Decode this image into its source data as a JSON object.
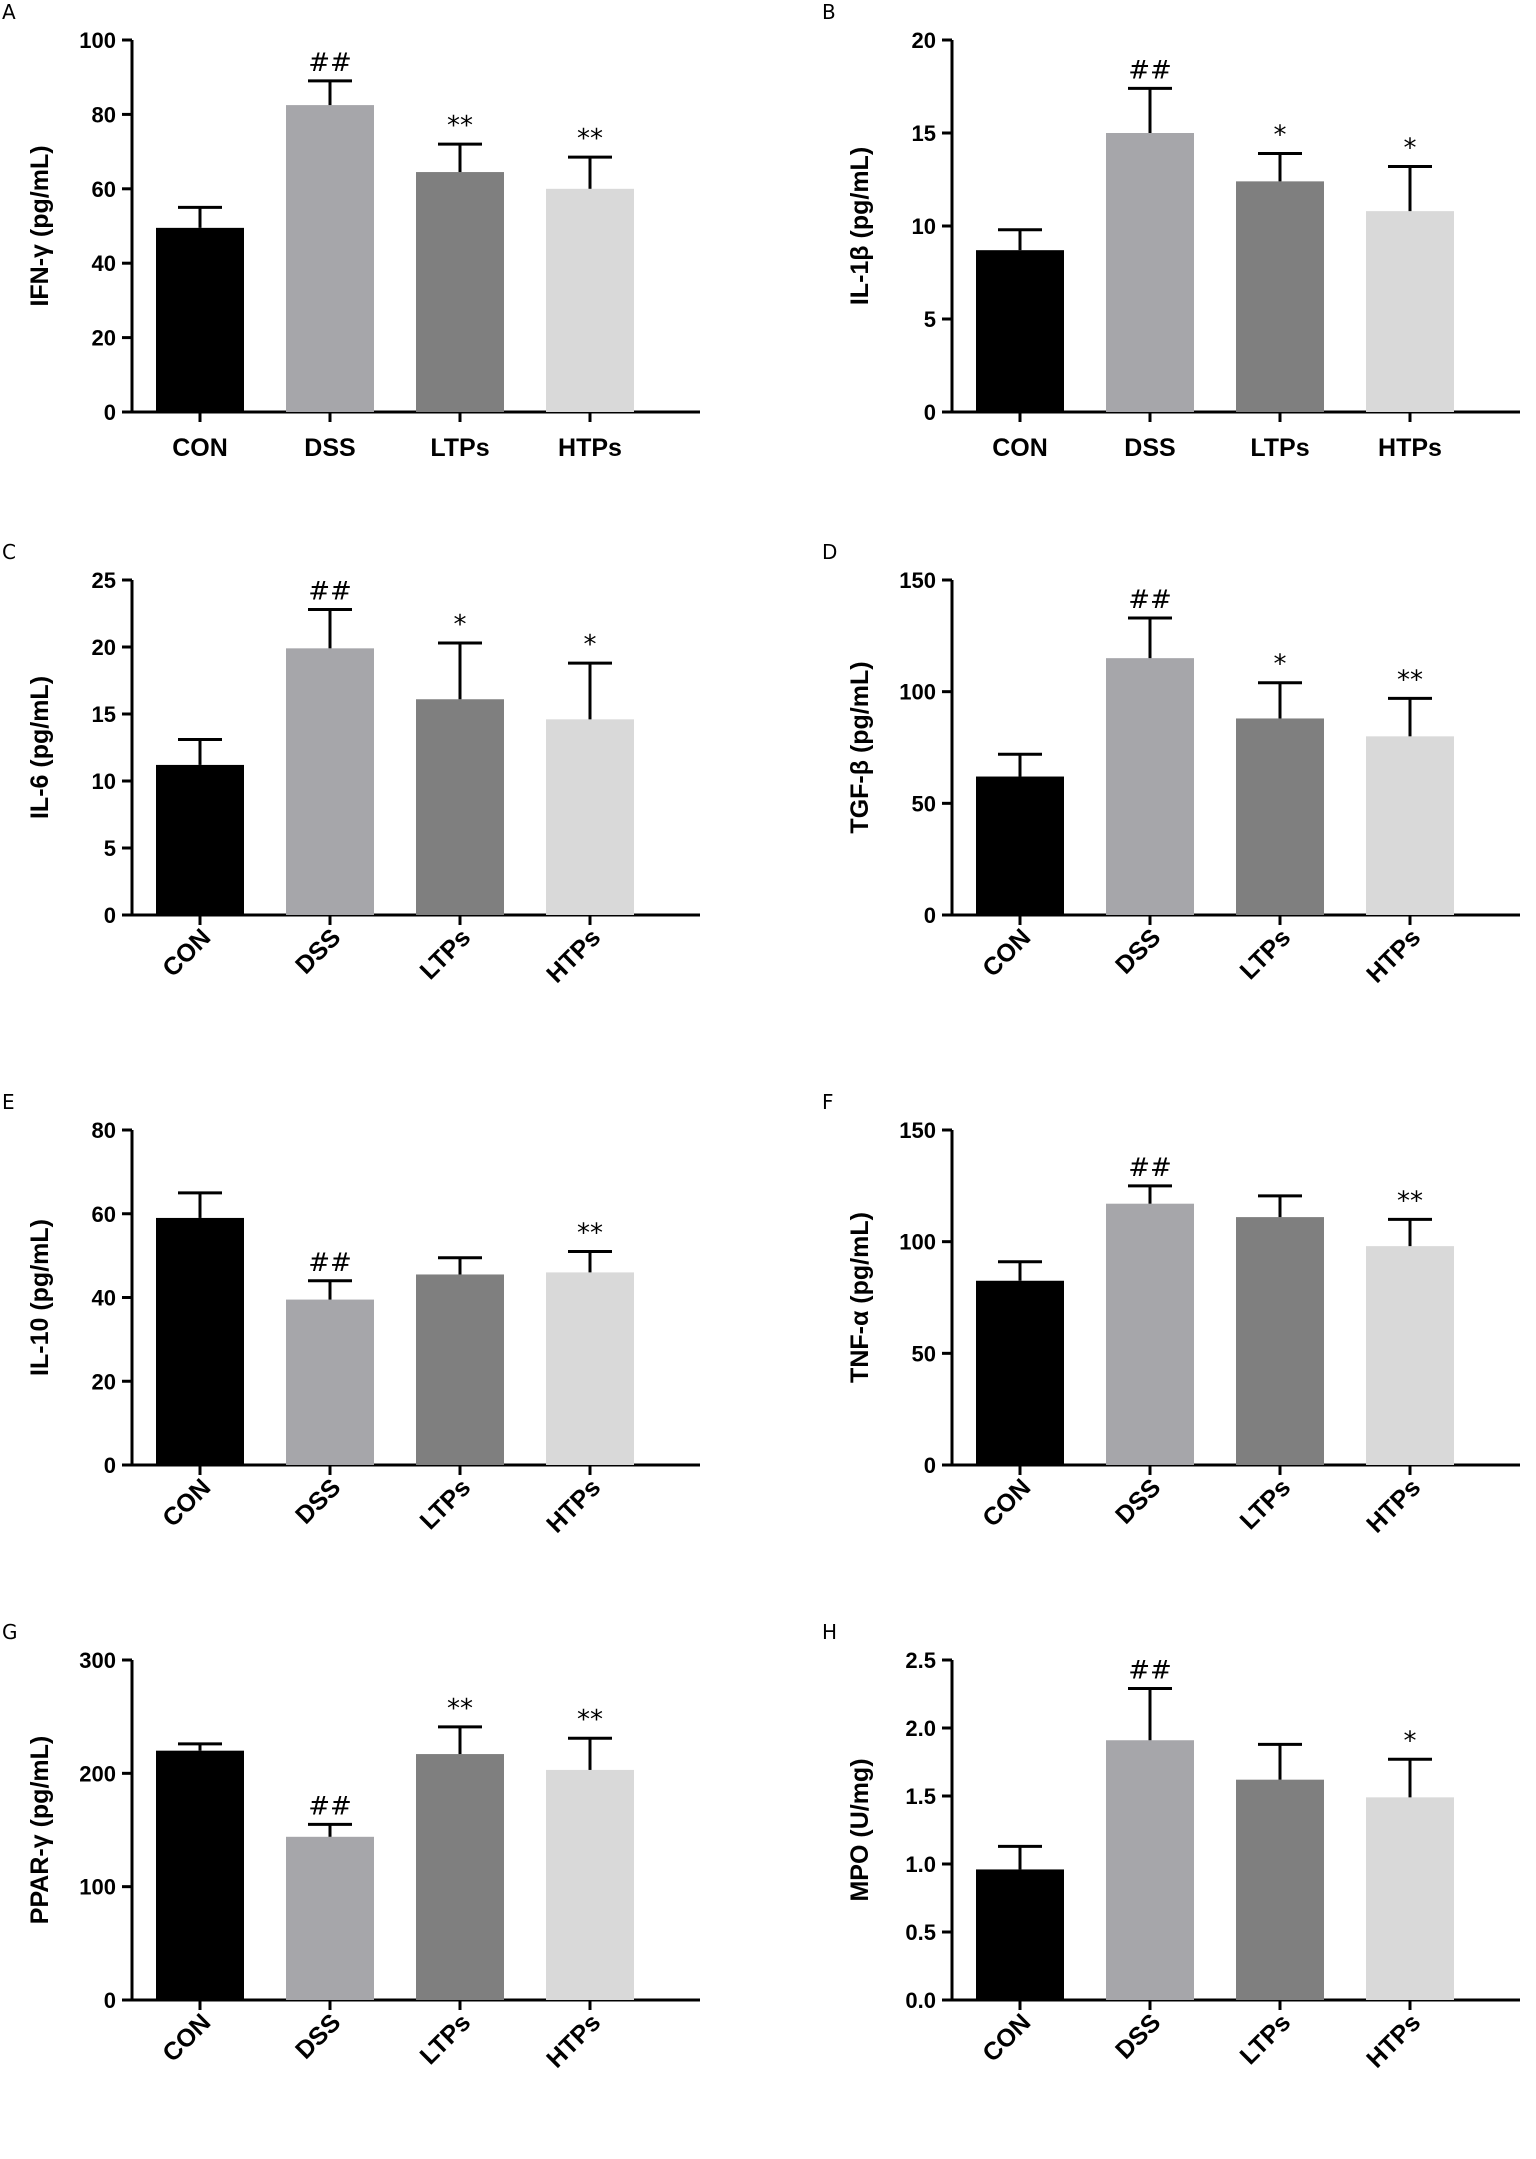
{
  "chart_data": [
    {
      "panel": "A",
      "type": "bar",
      "ylabel": "IFN-γ (pg/mL)",
      "categories": [
        "CON",
        "DSS",
        "LTPs",
        "HTPs"
      ],
      "values": [
        49.5,
        82.5,
        64.5,
        60
      ],
      "errors": [
        5.5,
        6.5,
        7.5,
        8.5
      ],
      "significance": [
        "",
        "##",
        "**",
        "**"
      ],
      "ylim": [
        0,
        100
      ],
      "yticks": [
        "0",
        "20",
        "40",
        "60",
        "80",
        "100"
      ],
      "xlabels_rotated": false
    },
    {
      "panel": "B",
      "type": "bar",
      "ylabel": "IL-1β (pg/mL)",
      "categories": [
        "CON",
        "DSS",
        "LTPs",
        "HTPs"
      ],
      "values": [
        8.7,
        15.0,
        12.4,
        10.8
      ],
      "errors": [
        1.1,
        2.4,
        1.5,
        2.4
      ],
      "significance": [
        "",
        "##",
        "*",
        "*"
      ],
      "ylim": [
        0,
        20
      ],
      "yticks": [
        "0",
        "5",
        "10",
        "15",
        "20"
      ],
      "xlabels_rotated": false
    },
    {
      "panel": "C",
      "type": "bar",
      "ylabel": "IL-6 (pg/mL)",
      "categories": [
        "CON",
        "DSS",
        "LTPs",
        "HTPs"
      ],
      "values": [
        11.2,
        19.9,
        16.1,
        14.6
      ],
      "errors": [
        1.9,
        2.9,
        4.2,
        4.2
      ],
      "significance": [
        "",
        "##",
        "*",
        "*"
      ],
      "ylim": [
        0,
        25
      ],
      "yticks": [
        "0",
        "5",
        "10",
        "15",
        "20",
        "25"
      ],
      "xlabels_rotated": true
    },
    {
      "panel": "D",
      "type": "bar",
      "ylabel": "TGF-β (pg/mL)",
      "categories": [
        "CON",
        "DSS",
        "LTPs",
        "HTPs"
      ],
      "values": [
        62,
        115,
        88,
        80
      ],
      "errors": [
        10,
        18,
        16,
        17
      ],
      "significance": [
        "",
        "##",
        "*",
        "**"
      ],
      "ylim": [
        0,
        150
      ],
      "yticks": [
        "0",
        "50",
        "100",
        "150"
      ],
      "xlabels_rotated": true
    },
    {
      "panel": "E",
      "type": "bar",
      "ylabel": "IL-10 (pg/mL)",
      "categories": [
        "CON",
        "DSS",
        "LTPs",
        "HTPs"
      ],
      "values": [
        59,
        39.5,
        45.5,
        46
      ],
      "errors": [
        6,
        4.5,
        4,
        5
      ],
      "significance": [
        "",
        "##",
        "",
        "**"
      ],
      "ylim": [
        0,
        80
      ],
      "yticks": [
        "0",
        "20",
        "40",
        "60",
        "80"
      ],
      "xlabels_rotated": true
    },
    {
      "panel": "F",
      "type": "bar",
      "ylabel": "TNF-α (pg/mL)",
      "categories": [
        "CON",
        "DSS",
        "LTPs",
        "HTPs"
      ],
      "values": [
        82.5,
        117,
        111,
        98
      ],
      "errors": [
        8.5,
        8,
        9.5,
        12
      ],
      "significance": [
        "",
        "##",
        "",
        "**"
      ],
      "ylim": [
        0,
        150
      ],
      "yticks": [
        "0",
        "50",
        "100",
        "150"
      ],
      "xlabels_rotated": true
    },
    {
      "panel": "G",
      "type": "bar",
      "ylabel": "PPAR-γ (pg/mL)",
      "categories": [
        "CON",
        "DSS",
        "LTPs",
        "HTPs"
      ],
      "values": [
        220,
        144,
        217,
        203
      ],
      "errors": [
        6,
        11,
        24,
        28
      ],
      "significance": [
        "",
        "##",
        "**",
        "**"
      ],
      "ylim": [
        0,
        300
      ],
      "yticks": [
        "0",
        "100",
        "200",
        "300"
      ],
      "xlabels_rotated": true
    },
    {
      "panel": "H",
      "type": "bar",
      "ylabel": "MPO (U/mg)",
      "categories": [
        "CON",
        "DSS",
        "LTPs",
        "HTPs"
      ],
      "values": [
        0.96,
        1.91,
        1.62,
        1.49
      ],
      "errors": [
        0.17,
        0.38,
        0.26,
        0.28
      ],
      "significance": [
        "",
        "##",
        "",
        "*"
      ],
      "ylim": [
        0,
        2.5
      ],
      "yticks": [
        "0.0",
        "0.5",
        "1.0",
        "1.5",
        "2.0",
        "2.5"
      ],
      "xlabels_rotated": true
    }
  ],
  "colors": {
    "bars": [
      "#000000",
      "#a6a6aa",
      "#7f7f7f",
      "#d9d9d9"
    ],
    "axis": "#000000"
  }
}
